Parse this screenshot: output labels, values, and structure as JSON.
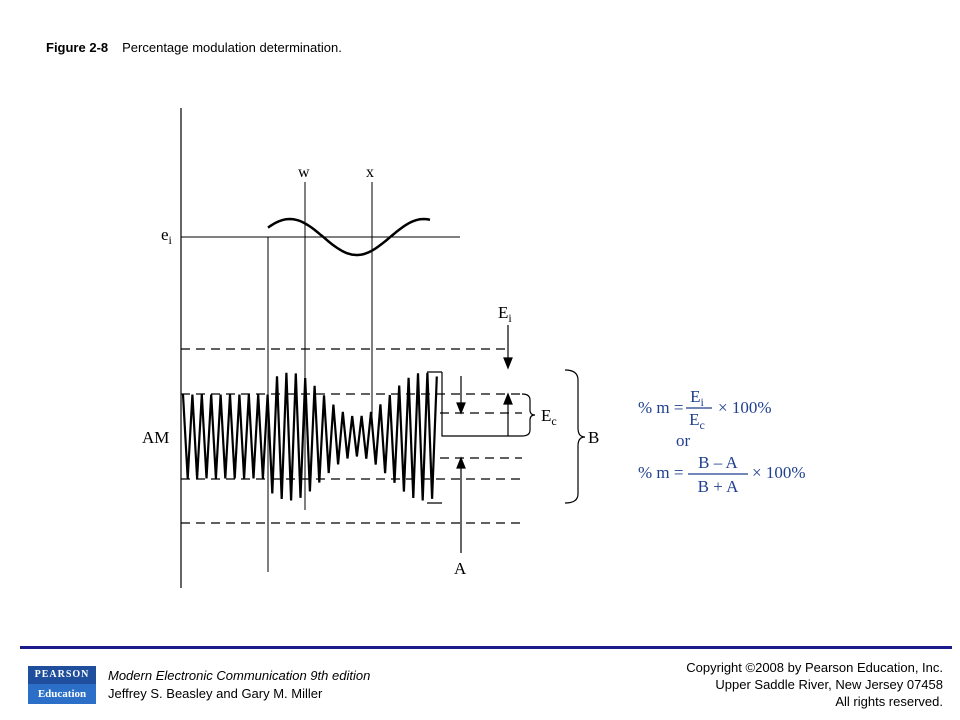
{
  "caption": {
    "number": "Figure 2-8",
    "text": "Percentage modulation determination."
  },
  "diagram": {
    "labels": {
      "w": "w",
      "x": "x",
      "ei": "e",
      "ei_sub": "i",
      "Ei": "E",
      "Ei_sub": "i",
      "Ec": "E",
      "Ec_sub": "c",
      "AM": "AM",
      "B": "B",
      "A": "A"
    },
    "formula1": {
      "lhs": "% m =",
      "num": "E",
      "num_sub": "i",
      "den": "E",
      "den_sub": "c",
      "tail": "× 100%"
    },
    "or_text": "or",
    "formula2": {
      "lhs": "% m =",
      "num": "B – A",
      "den": "B + A",
      "tail": "× 100%"
    },
    "formula_color": "#1f3f8f"
  },
  "footer": {
    "logo_top": "PEARSON",
    "logo_bottom": "Education",
    "book_title": "Modern Electronic Communication 9th edition",
    "authors": "Jeffrey S. Beasley and Gary M. Miller",
    "copyright": "Copyright ©2008 by Pearson Education, Inc.",
    "address": "Upper Saddle River, New Jersey 07458",
    "rights": "All rights reserved."
  },
  "colors": {
    "rule": "#1a1a8c",
    "logo_top": "#1f4e9c",
    "logo_bottom": "#2c6fc9"
  }
}
